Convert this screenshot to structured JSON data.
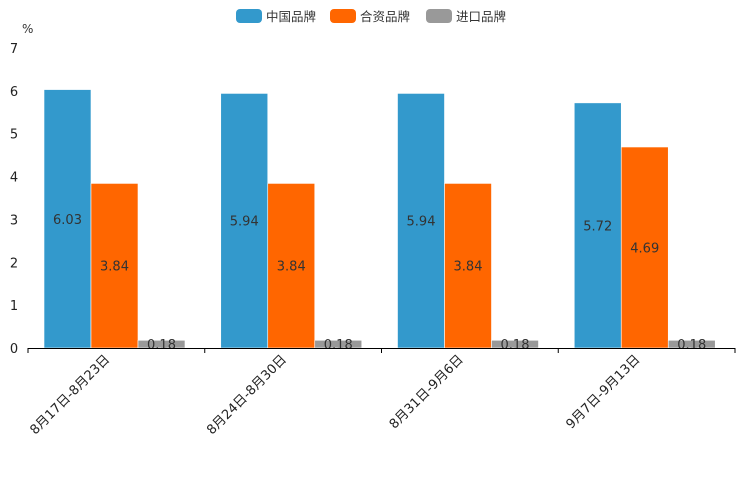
{
  "chart_data": {
    "type": "bar",
    "title": "",
    "xlabel": "",
    "ylabel": "%",
    "ylim": [
      0,
      7
    ],
    "yticks": [
      0,
      1,
      2,
      3,
      4,
      5,
      6,
      7
    ],
    "grid": false,
    "legend_position": "top-center",
    "categories": [
      "8月17日-8月23日",
      "8月24日-8月30日",
      "8月31日-9月6日",
      "9月7日-9月13日"
    ],
    "series": [
      {
        "name": "中国品牌",
        "color": "#3399cc",
        "values": [
          6.03,
          5.94,
          5.94,
          5.72
        ]
      },
      {
        "name": "合资品牌",
        "color": "#ff6600",
        "values": [
          3.84,
          3.84,
          3.84,
          4.69
        ]
      },
      {
        "name": "进口品牌",
        "color": "#999999",
        "values": [
          0.18,
          0.18,
          0.18,
          0.18
        ]
      }
    ]
  }
}
